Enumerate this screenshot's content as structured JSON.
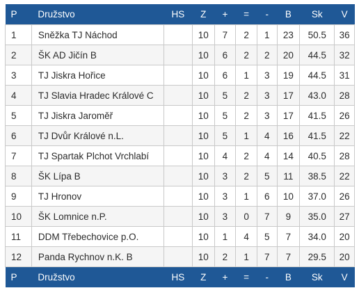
{
  "columns": {
    "p": "P",
    "team": "Družstvo",
    "hs": "HS",
    "z": "Z",
    "plus": "+",
    "eq": "=",
    "minus": "-",
    "b": "B",
    "sk": "Sk",
    "v": "V"
  },
  "rows": [
    {
      "p": "1",
      "team": "Sněžka TJ Náchod",
      "hs": "",
      "z": "10",
      "plus": "7",
      "eq": "2",
      "minus": "1",
      "b": "23",
      "sk": "50.5",
      "v": "36"
    },
    {
      "p": "2",
      "team": "ŠK AD Jičín B",
      "hs": "",
      "z": "10",
      "plus": "6",
      "eq": "2",
      "minus": "2",
      "b": "20",
      "sk": "44.5",
      "v": "32"
    },
    {
      "p": "3",
      "team": "TJ Jiskra Hořice",
      "hs": "",
      "z": "10",
      "plus": "6",
      "eq": "1",
      "minus": "3",
      "b": "19",
      "sk": "44.5",
      "v": "31"
    },
    {
      "p": "4",
      "team": "TJ Slavia Hradec Králové C",
      "hs": "",
      "z": "10",
      "plus": "5",
      "eq": "2",
      "minus": "3",
      "b": "17",
      "sk": "43.0",
      "v": "28"
    },
    {
      "p": "5",
      "team": "TJ Jiskra Jaroměř",
      "hs": "",
      "z": "10",
      "plus": "5",
      "eq": "2",
      "minus": "3",
      "b": "17",
      "sk": "41.5",
      "v": "26"
    },
    {
      "p": "6",
      "team": "TJ Dvůr Králové n.L.",
      "hs": "",
      "z": "10",
      "plus": "5",
      "eq": "1",
      "minus": "4",
      "b": "16",
      "sk": "41.5",
      "v": "22"
    },
    {
      "p": "7",
      "team": "TJ Spartak Plchot Vrchlabí",
      "hs": "",
      "z": "10",
      "plus": "4",
      "eq": "2",
      "minus": "4",
      "b": "14",
      "sk": "40.5",
      "v": "28"
    },
    {
      "p": "8",
      "team": "ŠK Lípa B",
      "hs": "",
      "z": "10",
      "plus": "3",
      "eq": "2",
      "minus": "5",
      "b": "11",
      "sk": "38.5",
      "v": "22"
    },
    {
      "p": "9",
      "team": "TJ Hronov",
      "hs": "",
      "z": "10",
      "plus": "3",
      "eq": "1",
      "minus": "6",
      "b": "10",
      "sk": "37.0",
      "v": "26"
    },
    {
      "p": "10",
      "team": "ŠK Lomnice n.P.",
      "hs": "",
      "z": "10",
      "plus": "3",
      "eq": "0",
      "minus": "7",
      "b": "9",
      "sk": "35.0",
      "v": "27"
    },
    {
      "p": "11",
      "team": "DDM Třebechovice p.O.",
      "hs": "",
      "z": "10",
      "plus": "1",
      "eq": "4",
      "minus": "5",
      "b": "7",
      "sk": "34.0",
      "v": "20"
    },
    {
      "p": "12",
      "team": "Panda Rychnov n.K. B",
      "hs": "",
      "z": "10",
      "plus": "2",
      "eq": "1",
      "minus": "7",
      "b": "7",
      "sk": "29.5",
      "v": "20"
    }
  ],
  "colors": {
    "header_bg": "#1f5896",
    "header_text": "#ffffff",
    "row_alt_bg": "#f5f5f5",
    "border": "#c9c9c9"
  }
}
